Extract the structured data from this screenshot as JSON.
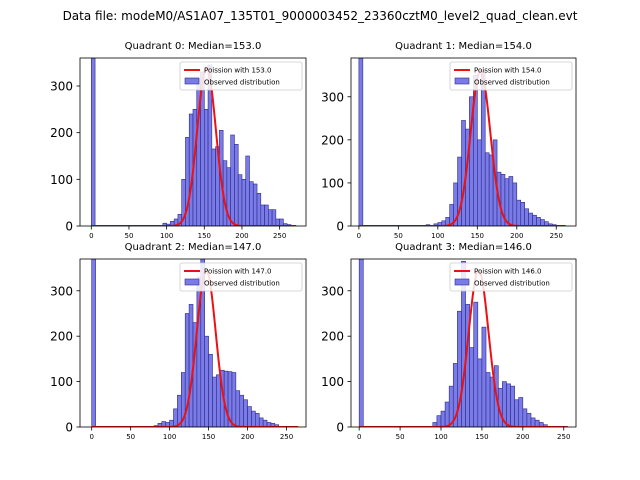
{
  "figure_title": "Data file: modeM0/AS1A07_135T01_9000003452_23360cztM0_level2_quad_clean.evt",
  "colors": {
    "bar_fill": "#7b7be8",
    "bar_edge": "#2a2a8a",
    "poisson_line": "#ee1111"
  },
  "chart_data": [
    {
      "type": "bar",
      "title": "Quadrant 0: Median=153.0",
      "legend": [
        "Poission with 153.0",
        "Observed distribution"
      ],
      "legend_position": "top-right",
      "xlim": [
        -15,
        285
      ],
      "ylim": [
        0,
        360
      ],
      "xticks": [
        0,
        50,
        100,
        150,
        200,
        250
      ],
      "yticks": [
        0,
        100,
        200,
        300
      ],
      "bin_width": 5,
      "bins": [
        {
          "x": 0,
          "y": 360
        },
        {
          "x": 95,
          "y": 6
        },
        {
          "x": 100,
          "y": 4
        },
        {
          "x": 105,
          "y": 10
        },
        {
          "x": 110,
          "y": 15
        },
        {
          "x": 115,
          "y": 25
        },
        {
          "x": 120,
          "y": 100
        },
        {
          "x": 125,
          "y": 190
        },
        {
          "x": 130,
          "y": 240
        },
        {
          "x": 135,
          "y": 250
        },
        {
          "x": 140,
          "y": 315
        },
        {
          "x": 145,
          "y": 330
        },
        {
          "x": 150,
          "y": 250
        },
        {
          "x": 155,
          "y": 345
        },
        {
          "x": 160,
          "y": 165
        },
        {
          "x": 165,
          "y": 170
        },
        {
          "x": 170,
          "y": 205
        },
        {
          "x": 175,
          "y": 140
        },
        {
          "x": 180,
          "y": 125
        },
        {
          "x": 185,
          "y": 195
        },
        {
          "x": 190,
          "y": 175
        },
        {
          "x": 195,
          "y": 110
        },
        {
          "x": 200,
          "y": 100
        },
        {
          "x": 205,
          "y": 150
        },
        {
          "x": 210,
          "y": 95
        },
        {
          "x": 215,
          "y": 90
        },
        {
          "x": 220,
          "y": 70
        },
        {
          "x": 225,
          "y": 45
        },
        {
          "x": 230,
          "y": 45
        },
        {
          "x": 235,
          "y": 35
        },
        {
          "x": 240,
          "y": 35
        },
        {
          "x": 245,
          "y": 15
        },
        {
          "x": 250,
          "y": 15
        },
        {
          "x": 255,
          "y": 5
        },
        {
          "x": 260,
          "y": 3
        }
      ],
      "poisson": {
        "mean": 153,
        "peak": 340,
        "x_range": [
          0,
          272
        ]
      }
    },
    {
      "type": "bar",
      "title": "Quadrant 1: Median=154.0",
      "legend": [
        "Poission with 154.0",
        "Observed distribution"
      ],
      "legend_position": "top-right",
      "xlim": [
        -10,
        275
      ],
      "ylim": [
        0,
        390
      ],
      "xticks": [
        0,
        50,
        100,
        150,
        200,
        250
      ],
      "yticks": [
        0,
        100,
        200,
        300
      ],
      "bin_width": 5,
      "bins": [
        {
          "x": 0,
          "y": 390
        },
        {
          "x": 85,
          "y": 3
        },
        {
          "x": 95,
          "y": 5
        },
        {
          "x": 100,
          "y": 8
        },
        {
          "x": 105,
          "y": 12
        },
        {
          "x": 110,
          "y": 20
        },
        {
          "x": 115,
          "y": 50
        },
        {
          "x": 120,
          "y": 100
        },
        {
          "x": 125,
          "y": 160
        },
        {
          "x": 130,
          "y": 245
        },
        {
          "x": 135,
          "y": 225
        },
        {
          "x": 140,
          "y": 300
        },
        {
          "x": 145,
          "y": 350
        },
        {
          "x": 150,
          "y": 200
        },
        {
          "x": 155,
          "y": 360
        },
        {
          "x": 160,
          "y": 170
        },
        {
          "x": 165,
          "y": 165
        },
        {
          "x": 170,
          "y": 200
        },
        {
          "x": 175,
          "y": 125
        },
        {
          "x": 180,
          "y": 120
        },
        {
          "x": 185,
          "y": 110
        },
        {
          "x": 190,
          "y": 115
        },
        {
          "x": 195,
          "y": 100
        },
        {
          "x": 200,
          "y": 60
        },
        {
          "x": 205,
          "y": 55
        },
        {
          "x": 210,
          "y": 40
        },
        {
          "x": 215,
          "y": 30
        },
        {
          "x": 220,
          "y": 25
        },
        {
          "x": 225,
          "y": 20
        },
        {
          "x": 230,
          "y": 15
        },
        {
          "x": 235,
          "y": 10
        },
        {
          "x": 240,
          "y": 5
        },
        {
          "x": 245,
          "y": 3
        }
      ],
      "poisson": {
        "mean": 154,
        "peak": 360,
        "x_range": [
          0,
          262
        ]
      }
    },
    {
      "type": "bar",
      "title": "Quadrant 2: Median=147.0",
      "legend": [
        "Poission with 147.0",
        "Observed distribution"
      ],
      "legend_position": "top-right",
      "xlim": [
        -15,
        275
      ],
      "ylim": [
        0,
        370
      ],
      "xticks": [
        0,
        50,
        100,
        150,
        200,
        250
      ],
      "yticks": [
        0,
        100,
        200,
        300
      ],
      "bin_width": 5,
      "bins": [
        {
          "x": 0,
          "y": 370
        },
        {
          "x": 80,
          "y": 3
        },
        {
          "x": 85,
          "y": 8
        },
        {
          "x": 90,
          "y": 12
        },
        {
          "x": 95,
          "y": 10
        },
        {
          "x": 100,
          "y": 15
        },
        {
          "x": 105,
          "y": 40
        },
        {
          "x": 110,
          "y": 70
        },
        {
          "x": 115,
          "y": 120
        },
        {
          "x": 120,
          "y": 250
        },
        {
          "x": 125,
          "y": 270
        },
        {
          "x": 130,
          "y": 230
        },
        {
          "x": 135,
          "y": 330
        },
        {
          "x": 140,
          "y": 370
        },
        {
          "x": 145,
          "y": 200
        },
        {
          "x": 150,
          "y": 160
        },
        {
          "x": 155,
          "y": 110
        },
        {
          "x": 160,
          "y": 115
        },
        {
          "x": 165,
          "y": 125
        },
        {
          "x": 170,
          "y": 123
        },
        {
          "x": 175,
          "y": 122
        },
        {
          "x": 180,
          "y": 120
        },
        {
          "x": 185,
          "y": 80
        },
        {
          "x": 190,
          "y": 70
        },
        {
          "x": 195,
          "y": 60
        },
        {
          "x": 200,
          "y": 45
        },
        {
          "x": 205,
          "y": 35
        },
        {
          "x": 210,
          "y": 30
        },
        {
          "x": 215,
          "y": 20
        },
        {
          "x": 220,
          "y": 15
        },
        {
          "x": 225,
          "y": 10
        },
        {
          "x": 230,
          "y": 8
        },
        {
          "x": 235,
          "y": 5
        }
      ],
      "poisson": {
        "mean": 147,
        "peak": 345,
        "x_range": [
          0,
          265
        ]
      }
    },
    {
      "type": "bar",
      "title": "Quadrant 3: Median=146.0",
      "legend": [
        "Poission with 146.0",
        "Observed distribution"
      ],
      "legend_position": "top-right",
      "xlim": [
        -10,
        265
      ],
      "ylim": [
        0,
        370
      ],
      "xticks": [
        0,
        50,
        100,
        150,
        200,
        250
      ],
      "yticks": [
        0,
        100,
        200,
        300
      ],
      "bin_width": 5,
      "bins": [
        {
          "x": 0,
          "y": 370
        },
        {
          "x": 90,
          "y": 10
        },
        {
          "x": 95,
          "y": 25
        },
        {
          "x": 100,
          "y": 35
        },
        {
          "x": 105,
          "y": 55
        },
        {
          "x": 110,
          "y": 90
        },
        {
          "x": 115,
          "y": 140
        },
        {
          "x": 120,
          "y": 255
        },
        {
          "x": 125,
          "y": 365
        },
        {
          "x": 130,
          "y": 270
        },
        {
          "x": 135,
          "y": 175
        },
        {
          "x": 140,
          "y": 275
        },
        {
          "x": 145,
          "y": 150
        },
        {
          "x": 150,
          "y": 220
        },
        {
          "x": 155,
          "y": 120
        },
        {
          "x": 160,
          "y": 110
        },
        {
          "x": 165,
          "y": 135
        },
        {
          "x": 170,
          "y": 85
        },
        {
          "x": 175,
          "y": 100
        },
        {
          "x": 180,
          "y": 95
        },
        {
          "x": 185,
          "y": 90
        },
        {
          "x": 190,
          "y": 60
        },
        {
          "x": 195,
          "y": 65
        },
        {
          "x": 200,
          "y": 40
        },
        {
          "x": 205,
          "y": 30
        },
        {
          "x": 210,
          "y": 20
        },
        {
          "x": 215,
          "y": 15
        },
        {
          "x": 220,
          "y": 10
        },
        {
          "x": 225,
          "y": 5
        }
      ],
      "poisson": {
        "mean": 146,
        "peak": 345,
        "x_range": [
          0,
          255
        ]
      }
    }
  ]
}
